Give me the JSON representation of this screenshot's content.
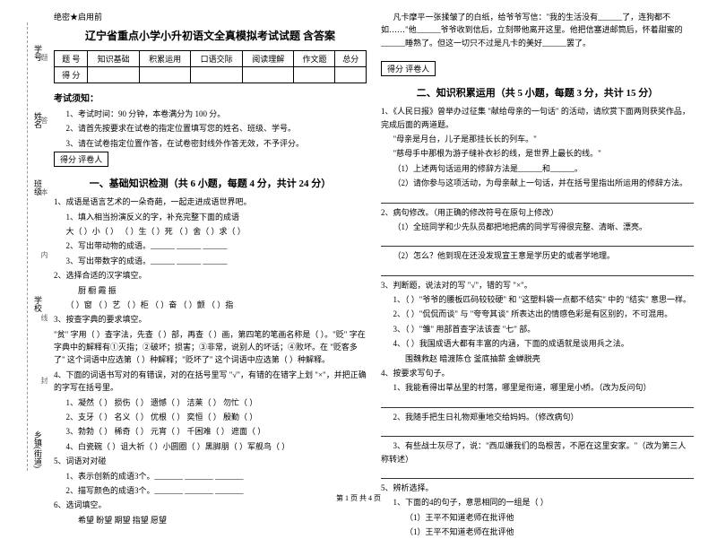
{
  "side": {
    "labels": [
      "学号",
      "姓名",
      "班级",
      "学校",
      "乡镇(街道)"
    ],
    "hints": [
      "题",
      "答",
      "本",
      "内",
      "线",
      "封"
    ],
    "line_color": "#999"
  },
  "header": {
    "secret": "绝密★启用前",
    "title": "辽宁省重点小学小升初语文全真模拟考试试题  含答案"
  },
  "score_table": {
    "row1": [
      "题  号",
      "知识基础",
      "积累运用",
      "口语交际",
      "阅读理解",
      "作文题",
      "总分"
    ],
    "row2": [
      "得  分",
      "",
      "",
      "",
      "",
      "",
      ""
    ]
  },
  "notice": {
    "head": "考试须知：",
    "items": [
      "1、考试时间：90 分钟，本卷满分为 100 分。",
      "2、请首先按要求在试卷的指定位置填写您的姓名、班级、学号。",
      "3、请在试卷指定位置作答，在试卷密封线外作答无效，不予评分。"
    ]
  },
  "score_label": "得分  评卷人",
  "sec1": {
    "title": "一、基础知识检测（共 6 小题，每题 4 分，共计 24 分）",
    "q1": {
      "stem": "1、成语是语言艺术的一朵奇葩，一起走进成语世界吧。",
      "sub1": "1、填入相当扮演反义的字，补充完整下面的成语",
      "line1": "  大（  ）小（  ）    （  ）生（  ）死    （  ）舍（  ）求（  ）",
      "sub2": "2、写出带动物的成语。______  ______  ______",
      "sub3": "3、写出带数字的成语。______  ______  ______",
      "q2stem": "2、选择合适的汉字填空。",
      "chars": "厨      橱      霞      振",
      "line2": "（  ）窗   （  ）艺    （  ）柜   （  ）奋   （  ）颤   （  ）指"
    },
    "q3": {
      "stem": "3、按查字典的要求填空。",
      "text": "    \"贫\" 字用（    ）查字法，先查（    ）部，再查（    ）画，第四笔的笔画名称是（    ）。\"贬\" 字在字典中的解释有①灭指；②破坏；损害；③非常，说别人的坏话；④败坏。在 \"贬客多了\" 这个词语中应选第（    ）种解释；\"贬坏了\" 这个词语中应选第（    ）种解释。",
      "q4stem": "4、下面的词语书写对的有错误，对的在括号里写 \"√\"，有错的在错字上划 \"×\"，并把正确的字写在括号里。",
      "items": [
        "1、凝然（  ）  损伤（  ）  遗憾（  ）  洁莱（  ）  勿忙（  ）",
        "2、支牙（  ）  名义（  ）  优根（  ）  奕恒（  ）  殷勤（  ）",
        "3、勃勃（  ）  稀奇（  ）  元宵（  ） 千困难（  ）  遮面（  ）",
        "4、白瓷碗（  ）诅大祈（  ）小圆圈（  ）黑脚朋（  ）军舰鸟（  ）"
      ]
    },
    "q5": {
      "stem": "5、词语对对碰",
      "sub1": "1、表示创新的成语3个。_______  _______  _______",
      "sub2": "2、描写颜色的成语3个。_______  _______  _______",
      "q6stem": "6、选词填空。",
      "words": "希望      盼望      期望      指望      愿望"
    }
  },
  "col2": {
    "story": {
      "p1": "凡卡摩平一张揉皱了的白纸，给爷爷写信：\"我的生活没有______了，连狗都不如……\"他______爷爷收到信后，立刻带他离开这里。他把信塞进邮筒后，怀着甜蜜的______睡熟了。但这一切只不过是凡卡的美好______罢了。"
    },
    "sec2": {
      "title": "二、知识积累运用（共 5 小题，每题 3 分，共计 15 分）",
      "q1stem": "1、《人民日报》曾举办过征集 \"献给母亲的一句话\" 的活动，请欣赏下面两则获奖作品，完成后面的两道题。",
      "quote1": "\"母亲是月台，儿子是那挂长长的列车。\"",
      "quote2": "\"慈母手中那根为游子缝补衣衫的线，是世界上最长的线。\"",
      "sub1": "（1）上述两句话运用的修辞方法是______和______。",
      "sub2": "（2）请你参与这项活动，为母亲献上一句话，并在括号里指出所运用的修辞方法。",
      "q2stem": "2、病句修改。（用正确的修改符号在原句上修改）",
      "line1": "（1）全班同学和少先队员都把地把病的同学写得很完整、清晰、漂亮。",
      "line2": "（2）怎么？他到现在还没发现宣王意是学历史的或者学地理。",
      "q3stem": "3、判断题，说法对的写 \"√\"，错的写 \"×\"。",
      "items": [
        "1、（  ）\"爷爷的腰板匹码较较硬\" 和 \"这塑料袋一点都不结实\" 中的 \"结实\" 意思一样。",
        "2、（  ）\"侃侃而谈\" 与 \"夸夸其谈\" 所表达出的情感色彩是有区别的，不可混用。",
        "3、（  ）\"雏\" 用部首查字法该查 \"七\" 部。",
        "4、（  ）我国成语大都有丰富的内涵，下面的成语就是谈用兵之法。",
        "      围魏救赵      暗渡陈仓      釜底抽薪      金蝉脱壳"
      ],
      "q4stem": "4、按要求写句子。",
      "sub41": "1、我能看得出草丛里的村落，哪里是衔道，哪里是小桥。（改为反问句）",
      "sub42": "2、我随手把生日礼物郑重地交给妈妈。（修改病句）",
      "sub43": "3、有些战士灰尽了，说：\"西瓜嫌我们的岛根苦，不愿在这里安家。\"（改为第三人称转述）",
      "q5stem": "5、辨析选择。",
      "sub51": "1、下面的4的句子，意思相同的一组是（    ）",
      "opts": "（1）王平不知道老师在批评他",
      "opts2": "（1）王平不知道老师在批评他"
    }
  },
  "footer": "第 1 页  共 4 页",
  "colors": {
    "text": "#000000",
    "bg": "#ffffff",
    "line": "#333333"
  }
}
